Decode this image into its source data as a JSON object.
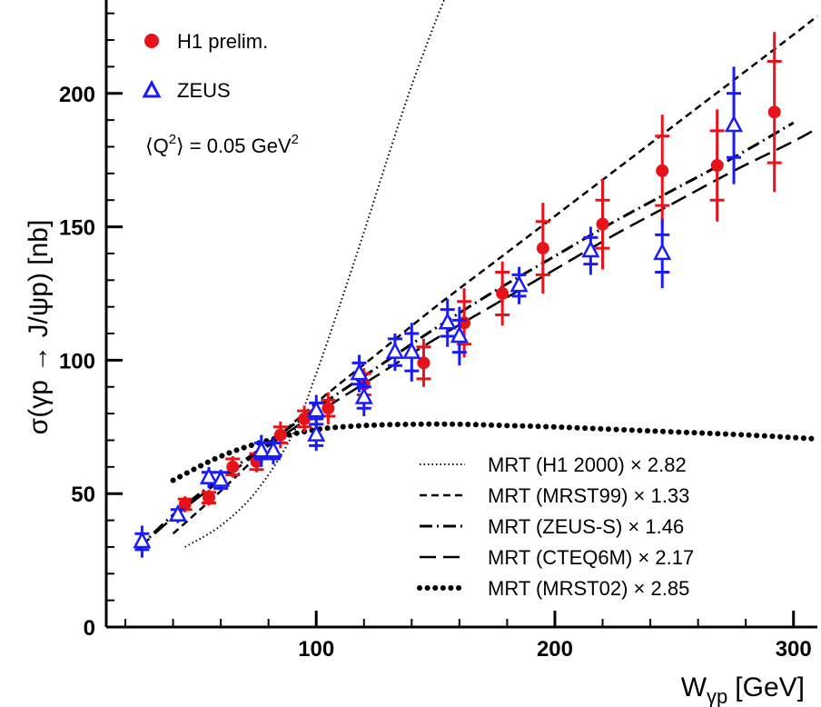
{
  "chart_data": {
    "type": "scatter",
    "xlabel": "W",
    "xlabel_sub": "γp",
    "xlabel_unit": "[GeV]",
    "ylabel": "σ(γp → J/ψp) [nb]",
    "xlim": [
      12,
      310
    ],
    "ylim": [
      0,
      235
    ],
    "xticks": [
      100,
      200,
      300
    ],
    "xtick_labels": [
      "100",
      "200",
      "300"
    ],
    "yticks": [
      0,
      50,
      100,
      150,
      200
    ],
    "ytick_labels": [
      "0",
      "50",
      "100",
      "150",
      "200"
    ],
    "annotation": "⟨Q²⟩ = 0.05 GeV²",
    "annotation_parts": {
      "open": "⟨Q",
      "sup1": "2",
      "mid": "⟩ = 0.05 GeV",
      "sup2": "2"
    },
    "series": [
      {
        "name": "H1 prelim.",
        "marker": "filled-circle",
        "color": "#e8121b",
        "points": [
          {
            "x": 45,
            "y": 46,
            "stat": 2,
            "tot": 3
          },
          {
            "x": 55,
            "y": 48.5,
            "stat": 2,
            "tot": 3
          },
          {
            "x": 65,
            "y": 60,
            "stat": 3,
            "tot": 4
          },
          {
            "x": 75,
            "y": 62,
            "stat": 3,
            "tot": 4
          },
          {
            "x": 85,
            "y": 72,
            "stat": 3,
            "tot": 5
          },
          {
            "x": 95,
            "y": 78,
            "stat": 3,
            "tot": 5
          },
          {
            "x": 105,
            "y": 82,
            "stat": 3,
            "tot": 6
          },
          {
            "x": 120,
            "y": 91,
            "stat": 4,
            "tot": 6
          },
          {
            "x": 145,
            "y": 99,
            "stat": 6,
            "tot": 9
          },
          {
            "x": 162,
            "y": 114,
            "stat": 8,
            "tot": 13
          },
          {
            "x": 178,
            "y": 125,
            "stat": 8,
            "tot": 12
          },
          {
            "x": 195,
            "y": 142,
            "stat": 10,
            "tot": 17
          },
          {
            "x": 220,
            "y": 151,
            "stat": 9,
            "tot": 17
          },
          {
            "x": 245,
            "y": 171,
            "stat": 13,
            "tot": 21
          },
          {
            "x": 268,
            "y": 173,
            "stat": 13,
            "tot": 21
          },
          {
            "x": 292,
            "y": 193,
            "stat": 19,
            "tot": 30
          }
        ]
      },
      {
        "name": "ZEUS",
        "marker": "open-triangle",
        "color": "#1a1aff",
        "points": [
          {
            "x": 27,
            "y": 32,
            "stat": 3,
            "tot": 6
          },
          {
            "x": 42,
            "y": 42,
            "stat": 2,
            "tot": 3
          },
          {
            "x": 55,
            "y": 56,
            "stat": 2,
            "tot": 4
          },
          {
            "x": 60,
            "y": 55,
            "stat": 3,
            "tot": 4
          },
          {
            "x": 77,
            "y": 66,
            "stat": 3,
            "tot": 6
          },
          {
            "x": 82,
            "y": 66,
            "stat": 3,
            "tot": 5
          },
          {
            "x": 100,
            "y": 81,
            "stat": 3,
            "tot": 6
          },
          {
            "x": 100,
            "y": 72,
            "stat": 4,
            "tot": 6
          },
          {
            "x": 118,
            "y": 95,
            "stat": 4,
            "tot": 7
          },
          {
            "x": 120,
            "y": 86,
            "stat": 4,
            "tot": 7
          },
          {
            "x": 133,
            "y": 103,
            "stat": 5,
            "tot": 7
          },
          {
            "x": 140,
            "y": 103,
            "stat": 7,
            "tot": 11
          },
          {
            "x": 155,
            "y": 114,
            "stat": 5,
            "tot": 9
          },
          {
            "x": 160,
            "y": 109,
            "stat": 6,
            "tot": 11
          },
          {
            "x": 185,
            "y": 128,
            "stat": 4,
            "tot": 7
          },
          {
            "x": 215,
            "y": 141,
            "stat": 5,
            "tot": 9
          },
          {
            "x": 245,
            "y": 140,
            "stat": 7,
            "tot": 13
          },
          {
            "x": 275,
            "y": 188,
            "stat": 12,
            "tot": 22
          }
        ]
      }
    ],
    "models": [
      {
        "name": "MRT (H1 2000) × 2.82",
        "style": "dotted-fine",
        "x": [
          45,
          60,
          75,
          90,
          100,
          110,
          120,
          130,
          140,
          150,
          155
        ],
        "y": [
          30,
          38,
          51,
          72,
          95,
          121,
          148,
          176,
          203,
          227,
          238
        ]
      },
      {
        "name": "MRT (MRST99) × 1.33",
        "style": "short-dash",
        "x": [
          40,
          60,
          80,
          100,
          125,
          150,
          175,
          200,
          225,
          250,
          275,
          300,
          310
        ],
        "y": [
          35,
          51,
          68,
          84,
          102,
          120,
          137,
          154,
          171,
          188,
          205,
          222,
          229
        ]
      },
      {
        "name": "MRT (ZEUS-S) × 1.46",
        "style": "dash-dot",
        "x": [
          25,
          40,
          60,
          80,
          100,
          125,
          150,
          175,
          200,
          225,
          250,
          275,
          300
        ],
        "y": [
          29,
          42,
          56,
          69,
          82,
          97,
          112,
          126,
          139,
          152,
          164,
          176,
          189
        ]
      },
      {
        "name": "MRT (CTEQ6M) × 2.17",
        "style": "long-dash",
        "x": [
          25,
          40,
          60,
          80,
          100,
          125,
          150,
          175,
          200,
          225,
          250,
          275,
          300,
          310
        ],
        "y": [
          29,
          41,
          55,
          68,
          80,
          94,
          108,
          121,
          134,
          147,
          159,
          171,
          182,
          187
        ]
      },
      {
        "name": "MRT (MRST02) × 2.85",
        "style": "heavy-dots",
        "x": [
          40,
          60,
          80,
          100,
          120,
          140,
          160,
          180,
          200,
          240,
          280,
          310
        ],
        "y": [
          55,
          64,
          70,
          74,
          75.5,
          76,
          76,
          75.5,
          75,
          73.5,
          72,
          70.5
        ]
      }
    ],
    "grid": false,
    "legend_position": "top-left",
    "models_legend_position": "bottom-right"
  }
}
